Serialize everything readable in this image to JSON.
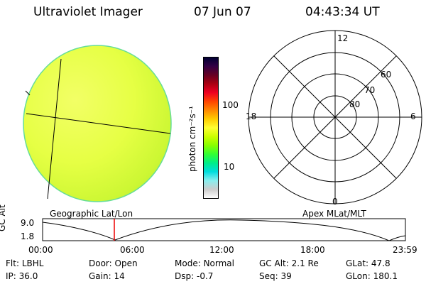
{
  "header": {
    "instrument": "Ultraviolet Imager",
    "date": "07 Jun 07",
    "time": "04:43:34 UT"
  },
  "colorbar": {
    "unit_label": "photon cm⁻²s⁻¹",
    "ticks": [
      "100",
      "10"
    ],
    "colors": [
      "#000033",
      "#330044",
      "#660022",
      "#aa0011",
      "#ee0022",
      "#ff4400",
      "#ff8800",
      "#ffcc00",
      "#ffff33",
      "#ccff00",
      "#88ff00",
      "#33ff33",
      "#00ee88",
      "#00dddd",
      "#88eeee",
      "#cccccc",
      "#ffffff"
    ]
  },
  "polar_plot": {
    "mlt_labels": {
      "top": "12",
      "bottom": "0",
      "left": "18",
      "right": "6"
    },
    "lat_labels": [
      "60",
      "70",
      "80"
    ]
  },
  "labels": {
    "geographic": "Geographic Lat/Lon",
    "apex": "Apex MLat/MLT"
  },
  "timeline": {
    "axis_title": "GC Alt",
    "y_ticks": [
      "9.0",
      "1.8"
    ],
    "x_ticks": [
      "00:00",
      "06:00",
      "12:00",
      "18:00",
      "23:59"
    ],
    "current_time_marker": "04:43"
  },
  "info": {
    "flt": {
      "label": "Flt:",
      "value": "LBHL"
    },
    "ip": {
      "label": "IP:",
      "value": "36.0"
    },
    "door": {
      "label": "Door:",
      "value": "Open"
    },
    "gain": {
      "label": "Gain:",
      "value": "14"
    },
    "mode": {
      "label": "Mode:",
      "value": "Normal"
    },
    "dsp": {
      "label": "Dsp:",
      "value": "-0.7"
    },
    "gcalt": {
      "label": "GC Alt:",
      "value": "2.1 Re"
    },
    "seq": {
      "label": "Seq:",
      "value": "39"
    },
    "glat": {
      "label": "GLat:",
      "value": "47.8"
    },
    "glon": {
      "label": "GLon:",
      "value": "180.1"
    }
  }
}
